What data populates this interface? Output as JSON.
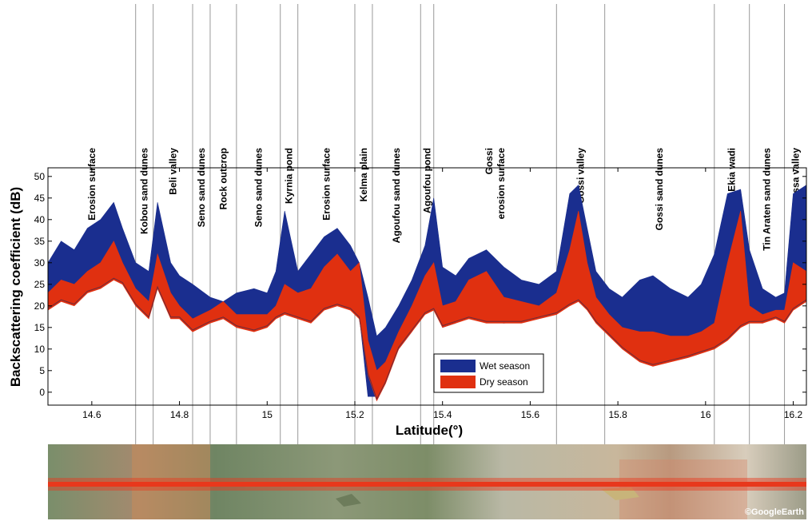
{
  "chart_data": {
    "type": "area",
    "xlabel": "Latitude(°)",
    "ylabel": "Backscattering coefficient (dB)",
    "xlim": [
      14.5,
      16.23
    ],
    "ylim": [
      -3,
      52
    ],
    "x_ticks": [
      14.6,
      14.8,
      15,
      15.2,
      15.4,
      15.6,
      15.8,
      16,
      16.2
    ],
    "x_tick_labels": [
      "14.6",
      "14.8",
      "15",
      "15.2",
      "15.4",
      "15.6",
      "15.8",
      "16",
      "16.2"
    ],
    "y_ticks": [
      0,
      5,
      10,
      15,
      20,
      25,
      30,
      35,
      40,
      45,
      50
    ],
    "y_tick_labels": [
      "0",
      "5",
      "10",
      "15",
      "20",
      "25",
      "30",
      "35",
      "40",
      "45",
      "50"
    ],
    "grid": false,
    "legend_position": "bottom-center",
    "boundaries": [
      14.7,
      14.74,
      14.83,
      14.87,
      14.93,
      15.03,
      15.07,
      15.2,
      15.24,
      15.35,
      15.38,
      15.66,
      15.77,
      16.02,
      16.1,
      16.18
    ],
    "regions": [
      {
        "label": "Erosion surface",
        "center": 14.6
      },
      {
        "label": "Kobou sand dunes",
        "center": 14.72
      },
      {
        "label": "Beli valley",
        "center": 14.785
      },
      {
        "label": "Seno sand dunes",
        "center": 14.85
      },
      {
        "label": "Rock outcrop",
        "center": 14.9
      },
      {
        "label": "Seno sand dunes",
        "center": 14.98
      },
      {
        "label": "Kyrnia pond",
        "center": 15.05
      },
      {
        "label": "Erosion surface",
        "center": 15.135
      },
      {
        "label": "Kelma plain",
        "center": 15.22
      },
      {
        "label": "Agoufou sand dunes",
        "center": 15.295
      },
      {
        "label": "Agoufou pond",
        "center": 15.365
      },
      {
        "label": "Gossi\nerosion surface",
        "center": 15.52
      },
      {
        "label": "Gossi valley",
        "center": 15.715
      },
      {
        "label": "Gossi sand dunes",
        "center": 15.895
      },
      {
        "label": "Ekia wadi",
        "center": 16.06
      },
      {
        "label": "Tin Araten sand dunes",
        "center": 16.14
      },
      {
        "label": "Karouassa valley",
        "center": 16.205
      }
    ],
    "series": [
      {
        "name": "Wet season",
        "color": "#1a2e8f",
        "x": [
          14.5,
          14.53,
          14.56,
          14.59,
          14.62,
          14.65,
          14.67,
          14.7,
          14.73,
          14.75,
          14.78,
          14.8,
          14.83,
          14.87,
          14.9,
          14.93,
          14.97,
          15.0,
          15.02,
          15.04,
          15.07,
          15.1,
          15.13,
          15.16,
          15.19,
          15.21,
          15.23,
          15.25,
          15.27,
          15.3,
          15.33,
          15.36,
          15.38,
          15.4,
          15.43,
          15.46,
          15.5,
          15.54,
          15.58,
          15.62,
          15.66,
          15.69,
          15.71,
          15.73,
          15.75,
          15.78,
          15.81,
          15.85,
          15.88,
          15.92,
          15.96,
          15.99,
          16.02,
          16.05,
          16.08,
          16.1,
          16.13,
          16.16,
          16.18,
          16.2,
          16.23
        ],
        "upper": [
          30,
          35,
          33,
          38,
          40,
          44,
          38,
          30,
          28,
          44,
          30,
          27,
          25,
          22,
          21,
          23,
          24,
          23,
          28,
          42,
          28,
          32,
          36,
          38,
          34,
          30,
          22,
          13,
          15,
          20,
          26,
          34,
          45,
          29,
          27,
          31,
          33,
          29,
          26,
          25,
          28,
          46,
          48,
          38,
          28,
          24,
          22,
          26,
          27,
          24,
          22,
          25,
          32,
          46,
          47,
          33,
          24,
          22,
          23,
          46,
          48
        ],
        "lower": [
          20,
          22,
          21,
          24,
          25,
          27,
          26,
          21,
          18,
          25,
          18,
          18,
          15,
          17,
          18,
          16,
          15,
          16,
          18,
          19,
          18,
          17,
          20,
          21,
          20,
          18,
          -1,
          -1,
          3,
          10,
          14,
          19,
          20,
          15,
          16,
          18,
          17,
          16,
          17,
          18,
          19,
          21,
          22,
          20,
          17,
          14,
          11,
          9,
          8,
          9,
          10,
          10,
          11,
          14,
          15,
          17,
          16,
          18,
          17,
          20,
          22
        ]
      },
      {
        "name": "Dry season",
        "color": "#e03010",
        "x": [
          14.5,
          14.53,
          14.56,
          14.59,
          14.62,
          14.65,
          14.67,
          14.7,
          14.73,
          14.75,
          14.78,
          14.8,
          14.83,
          14.87,
          14.9,
          14.93,
          14.97,
          15.0,
          15.02,
          15.04,
          15.07,
          15.1,
          15.13,
          15.16,
          15.19,
          15.21,
          15.23,
          15.25,
          15.27,
          15.3,
          15.33,
          15.36,
          15.38,
          15.4,
          15.43,
          15.46,
          15.5,
          15.54,
          15.58,
          15.62,
          15.66,
          15.69,
          15.71,
          15.73,
          15.75,
          15.78,
          15.81,
          15.85,
          15.88,
          15.92,
          15.96,
          15.99,
          16.02,
          16.05,
          16.08,
          16.1,
          16.13,
          16.16,
          16.18,
          16.2,
          16.23
        ],
        "upper": [
          23,
          26,
          25,
          28,
          30,
          35,
          30,
          24,
          21,
          32,
          23,
          20,
          17,
          19,
          21,
          18,
          18,
          18,
          20,
          25,
          23,
          24,
          29,
          32,
          28,
          30,
          12,
          5,
          7,
          14,
          20,
          27,
          30,
          20,
          21,
          26,
          28,
          22,
          21,
          20,
          23,
          33,
          42,
          30,
          22,
          18,
          15,
          14,
          14,
          13,
          13,
          14,
          16,
          30,
          42,
          20,
          18,
          19,
          19,
          30,
          28
        ],
        "lower": [
          19,
          21,
          20,
          23,
          24,
          26,
          25,
          20,
          17,
          24,
          17,
          17,
          14,
          16,
          17,
          15,
          14,
          15,
          17,
          18,
          17,
          16,
          19,
          20,
          19,
          17,
          4,
          -2,
          2,
          10,
          14,
          18,
          19,
          15,
          16,
          17,
          16,
          16,
          16,
          17,
          18,
          20,
          21,
          19,
          16,
          13,
          10,
          7,
          6,
          7,
          8,
          9,
          10,
          12,
          15,
          16,
          16,
          17,
          16,
          19,
          21
        ]
      }
    ]
  },
  "legend": {
    "items": [
      {
        "label": "Wet season",
        "color": "#1a2e8f"
      },
      {
        "label": "Dry season",
        "color": "#e03010"
      }
    ]
  },
  "satellite_strip": {
    "credit": "©GoogleEarth",
    "track_color": "#e8381c"
  }
}
